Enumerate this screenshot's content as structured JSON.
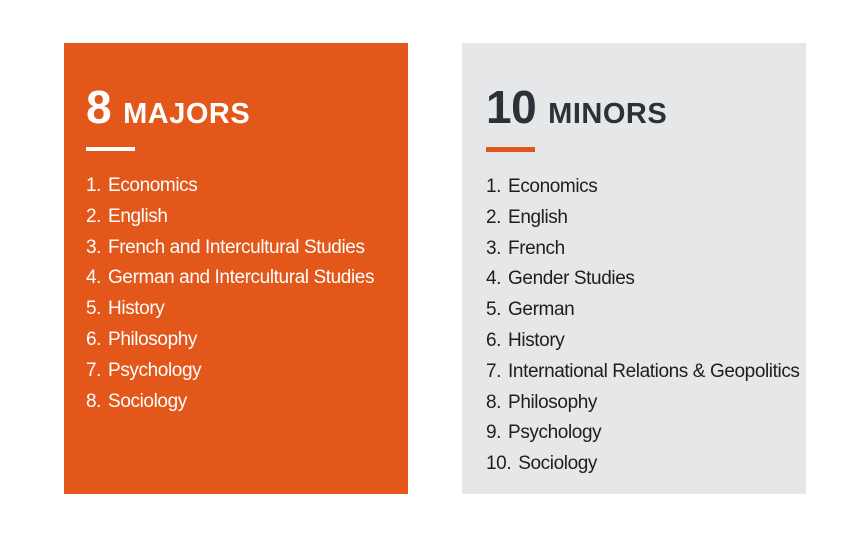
{
  "colors": {
    "orange": "#E4571A",
    "light_gray": "#E6E7E8",
    "white": "#FFFFFF",
    "dark_heading": "#2C3037",
    "dark_text": "#1E1E1E"
  },
  "majors_card": {
    "count": "8",
    "title": "MAJORS",
    "items": [
      {
        "num": "1.",
        "label": "Economics"
      },
      {
        "num": "2.",
        "label": "English"
      },
      {
        "num": "3.",
        "label": "French and Intercultural Studies"
      },
      {
        "num": "4.",
        "label": "German and Intercultural Studies"
      },
      {
        "num": "5.",
        "label": "History"
      },
      {
        "num": "6.",
        "label": "Philosophy"
      },
      {
        "num": "7.",
        "label": "Psychology"
      },
      {
        "num": "8.",
        "label": "Sociology"
      }
    ]
  },
  "minors_card": {
    "count": "10",
    "title": "MINORS",
    "items": [
      {
        "num": "1.",
        "label": "Economics"
      },
      {
        "num": "2.",
        "label": "English"
      },
      {
        "num": "3.",
        "label": "French"
      },
      {
        "num": "4.",
        "label": "Gender Studies"
      },
      {
        "num": "5.",
        "label": "German"
      },
      {
        "num": "6.",
        "label": "History"
      },
      {
        "num": "7.",
        "label": "International Relations & Geopolitics"
      },
      {
        "num": "8.",
        "label": "Philosophy"
      },
      {
        "num": "9.",
        "label": "Psychology"
      },
      {
        "num": "10.",
        "label": "Sociology"
      }
    ]
  }
}
